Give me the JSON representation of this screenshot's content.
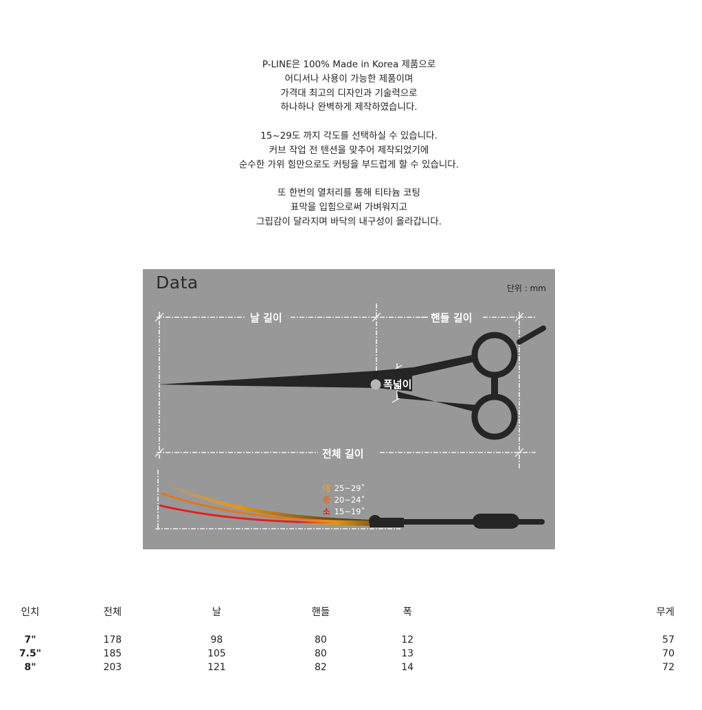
{
  "intro": {
    "paragraphs": [
      [
        "P-LINE은 100% Made in Korea 제품으로",
        "어디서나 사용이 가능한 제품이며",
        "가격대 최고의 디자인과 기술력으로",
        "하나하나 완벽하게 제작하였습니다."
      ],
      [
        "15~29도 까지 각도를 선택하실 수 있습니다.",
        "커브 작업 전 텐션을 맞추어 제작되었기에",
        "순수한 가위 힘만으로도 커팅을 부드럽게 할 수 있습니다."
      ],
      [
        "또 한번의 열처리를 통해 티타늄 코팅",
        "표막을 입힘으로써 가벼워지고",
        "그립감이 달라지며 바닥의 내구성이 올라갑니다."
      ]
    ]
  },
  "diagram": {
    "title": "Data",
    "unit": "단위 : mm",
    "blade_length": "날 길이",
    "handle_length": "핸들 길이",
    "width": "폭넓이",
    "total_length": "전체 길이",
    "angles": [
      {
        "key": "대",
        "range": "25~29˚",
        "color": "#f0a020"
      },
      {
        "key": "중",
        "range": "20~24˚",
        "color": "#e86a1a"
      },
      {
        "key": "소",
        "range": "15~19˚",
        "color": "#e01818"
      }
    ]
  },
  "table": {
    "headers": [
      "인치",
      "전체",
      "날",
      "핸들",
      "폭",
      "무게"
    ],
    "rows": [
      [
        "7\"",
        "178",
        "98",
        "80",
        "12",
        "57"
      ],
      [
        "7.5\"",
        "185",
        "105",
        "80",
        "13",
        "70"
      ],
      [
        "8\"",
        "203",
        "121",
        "82",
        "14",
        "72"
      ]
    ]
  }
}
